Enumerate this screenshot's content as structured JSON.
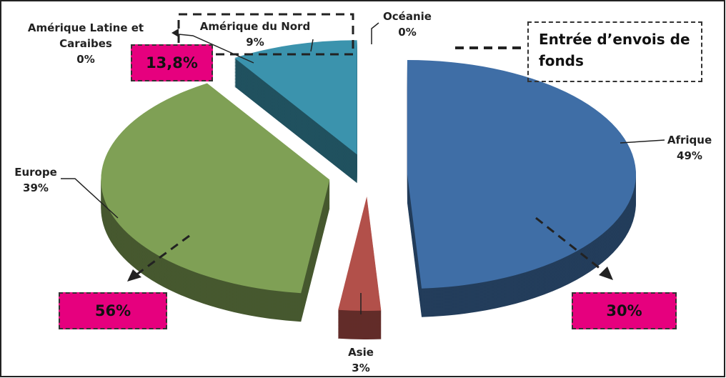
{
  "chart_data": {
    "type": "pie",
    "categories": [
      "Océanie",
      "Afrique",
      "Asie",
      "Europe",
      "Amérique Latine et Caraibes",
      "Amérique du Nord"
    ],
    "values": [
      0,
      49,
      3,
      39,
      0,
      9
    ],
    "value_labels": [
      "0%",
      "49%",
      "3%",
      "39%",
      "0%",
      "9%"
    ],
    "colors": [
      "#e49a7c",
      "#3f6ea6",
      "#b2504a",
      "#7fa055",
      "#2e1b45",
      "#3b93ad"
    ],
    "annotations": [
      {
        "text": "Entrée d’envois de fonds"
      },
      {
        "text": "13,8%"
      },
      {
        "text": "56%"
      },
      {
        "text": "30%"
      }
    ]
  }
}
